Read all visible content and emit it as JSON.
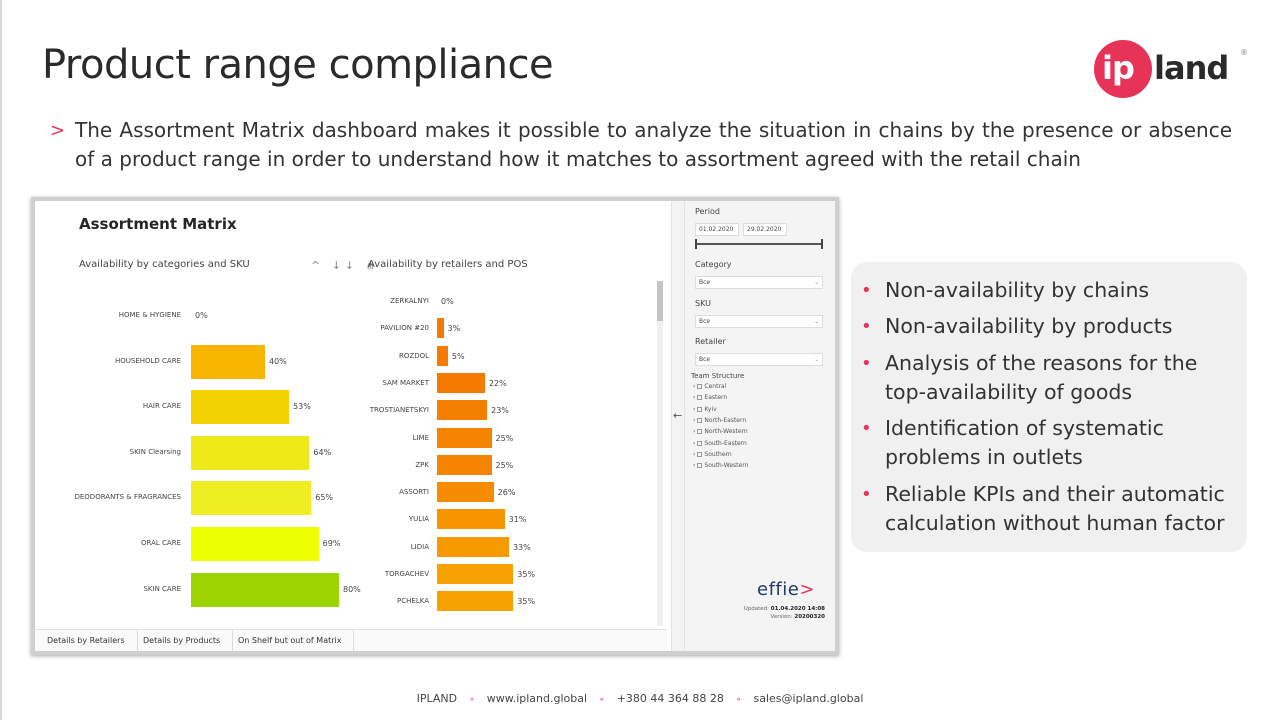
{
  "slide": {
    "title": "Product range compliance",
    "intro_marker": ">",
    "intro": "The Assortment Matrix dashboard makes it possible to analyze the situation in chains by the presence or absence of a product range in order to understand how it matches to assortment agreed with the retail chain"
  },
  "logo": {
    "ip": "ip",
    "land": "land",
    "reg": "®"
  },
  "dashboard": {
    "title": "Assortment Matrix",
    "left_chart_title": "Availability by categories and SKU",
    "right_chart_title": "Availability by retailers and POS",
    "header_icons": "^ ↓↓ ⋔",
    "tabs": [
      "Details by Retailers",
      "Details by Products",
      "On Shelf but out of Matrix"
    ],
    "collapse_arrow": "←"
  },
  "chart_data": [
    {
      "type": "bar",
      "title": "Availability by categories and SKU",
      "categories": [
        "HOME & HYGIENE",
        "HOUSEHOLD CARE",
        "HAIR CARE",
        "SKIN Clearsing",
        "DEODORANTS & FRAGRANCES",
        "ORAL CARE",
        "SKIN CARE"
      ],
      "values": [
        0,
        40,
        53,
        64,
        65,
        69,
        80
      ],
      "labels": [
        "0%",
        "40%",
        "53%",
        "64%",
        "65%",
        "69%",
        "80%"
      ],
      "colors": [
        "#f7b500",
        "#f7b500",
        "#f2d200",
        "#eeea1a",
        "#eeee22",
        "#eeff00",
        "#9bd400"
      ],
      "orientation": "horizontal",
      "xlim": [
        0,
        100
      ]
    },
    {
      "type": "bar",
      "title": "Availability by retailers and POS",
      "categories": [
        "ZERKALNYI",
        "PAVILION #20",
        "ROZDOL",
        "SAM MARKET",
        "TROSTIANETSKYI",
        "LIME",
        "ZPK",
        "ASSORTI",
        "YULIA",
        "LIDIA",
        "TORGACHEV",
        "PCHELKA"
      ],
      "values": [
        0,
        3,
        5,
        22,
        23,
        25,
        25,
        26,
        31,
        33,
        35,
        35
      ],
      "labels": [
        "0%",
        "3%",
        "5%",
        "22%",
        "23%",
        "25%",
        "25%",
        "26%",
        "31%",
        "33%",
        "35%",
        "35%"
      ],
      "colors": [
        "#f47a00",
        "#f47a00",
        "#f47a00",
        "#f47a00",
        "#f47f00",
        "#f58500",
        "#f58500",
        "#f68a00",
        "#f79500",
        "#f79a00",
        "#f7a200",
        "#f7a200"
      ],
      "orientation": "horizontal",
      "xlim": [
        0,
        100
      ]
    }
  ],
  "filters": {
    "period_label": "Period",
    "date_from": "01.02.2020",
    "date_to": "29.02.2020",
    "category_label": "Category",
    "category_value": "Все",
    "sku_label": "SKU",
    "sku_value": "Все",
    "retailer_label": "Retailer",
    "retailer_value": "Все",
    "team_label": "Team Structure",
    "team_items": [
      "Central",
      "Eastern",
      "Kyiv",
      "North-Eastern",
      "North-Western",
      "South-Eastern",
      "Southern",
      "South-Western"
    ],
    "effie": "effie",
    "effie_mark": ">",
    "updated_label": "Updated:",
    "updated_value": "01.04.2020 14:08",
    "version_label": "Version:",
    "version_value": "20200320"
  },
  "callout": {
    "bullets": [
      "Non-availability by chains",
      "Non-availability by products",
      "Analysis of the reasons for the top-availability of goods",
      "Identification of systematic problems in outlets",
      "Reliable KPIs and their automatic calculation without human factor"
    ]
  },
  "footer": {
    "company": "IPLAND",
    "website": "www.ipland.global",
    "phone": "+380 44 364 88 28",
    "email": "sales@ipland.global"
  },
  "colors": {
    "accent": "#e63357",
    "brand_dark": "#1e3a68"
  }
}
